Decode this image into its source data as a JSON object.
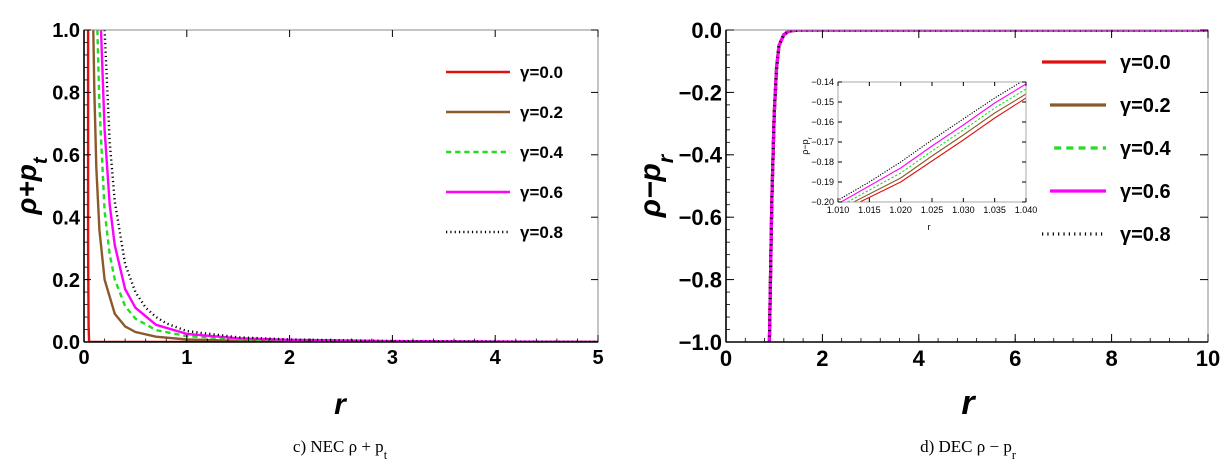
{
  "chart_data": [
    {
      "type": "line",
      "caption": "c) NEC ρ + p",
      "caption_sub": "t",
      "xlabel": "r",
      "ylabel": "ρ+p",
      "ylabel_sub": "t",
      "xlim": [
        0,
        5
      ],
      "ylim": [
        0,
        1.0
      ],
      "xticks": [
        "0",
        "1",
        "2",
        "3",
        "4",
        "5"
      ],
      "yticks": [
        "0.0",
        "0.2",
        "0.4",
        "0.6",
        "0.8",
        "1.0"
      ],
      "legend_position": "top-right",
      "series": [
        {
          "name": "γ=0.0",
          "color": "#e01010",
          "dash": "solid",
          "x": [
            0.04,
            0.04,
            0.045,
            0.05,
            5.0
          ],
          "y": [
            1.0,
            0.3,
            0.05,
            0.0,
            0.0
          ]
        },
        {
          "name": "γ=0.2",
          "color": "#8b5a2b",
          "dash": "solid",
          "x": [
            0.09,
            0.1,
            0.12,
            0.15,
            0.2,
            0.3,
            0.4,
            0.5,
            0.7,
            1.0,
            1.5,
            2.0,
            5.0
          ],
          "y": [
            1.0,
            0.81,
            0.56,
            0.36,
            0.2,
            0.09,
            0.05,
            0.032,
            0.017,
            0.008,
            0.004,
            0.002,
            0.0
          ]
        },
        {
          "name": "γ=0.4",
          "color": "#22dd22",
          "dash": "dashed",
          "x": [
            0.13,
            0.15,
            0.2,
            0.25,
            0.3,
            0.4,
            0.5,
            0.7,
            1.0,
            1.5,
            2.0,
            3.0,
            5.0
          ],
          "y": [
            1.0,
            0.76,
            0.42,
            0.28,
            0.2,
            0.115,
            0.075,
            0.038,
            0.019,
            0.009,
            0.005,
            0.002,
            0.0
          ]
        },
        {
          "name": "γ=0.6",
          "color": "#ff00ff",
          "dash": "solid",
          "x": [
            0.165,
            0.2,
            0.25,
            0.3,
            0.4,
            0.5,
            0.7,
            1.0,
            1.5,
            2.0,
            3.0,
            5.0
          ],
          "y": [
            1.0,
            0.68,
            0.44,
            0.31,
            0.17,
            0.11,
            0.055,
            0.026,
            0.012,
            0.007,
            0.003,
            0.0
          ]
        },
        {
          "name": "γ=0.8",
          "color": "#000000",
          "dash": "dotted",
          "x": [
            0.2,
            0.25,
            0.3,
            0.4,
            0.5,
            0.6,
            0.7,
            0.8,
            1.0,
            1.5,
            2.0,
            3.0,
            5.0
          ],
          "y": [
            1.0,
            0.64,
            0.45,
            0.25,
            0.16,
            0.11,
            0.08,
            0.06,
            0.035,
            0.015,
            0.008,
            0.003,
            0.0
          ]
        }
      ]
    },
    {
      "type": "line",
      "caption": "d) DEC ρ − p",
      "caption_sub": "r",
      "xlabel": "r",
      "ylabel": "ρ−p",
      "ylabel_sub": "r",
      "xlim": [
        0,
        10
      ],
      "ylim": [
        -1.0,
        0.0
      ],
      "xticks": [
        "0",
        "2",
        "4",
        "6",
        "8",
        "10"
      ],
      "yticks": [
        "-1.0",
        "-0.8",
        "-0.6",
        "-0.4",
        "-0.2",
        "0.0"
      ],
      "legend_position": "top-right",
      "series": [
        {
          "name": "γ=0.0",
          "color": "#e01010",
          "dash": "solid",
          "x": [
            0.9,
            0.95,
            1.0,
            1.05,
            1.1,
            1.2,
            1.3,
            1.5,
            2.0,
            10.0
          ],
          "y": [
            -1.0,
            -0.55,
            -0.27,
            -0.12,
            -0.05,
            -0.015,
            -0.004,
            0.0,
            0.0,
            0.0
          ]
        },
        {
          "name": "γ=0.2",
          "color": "#8b5a2b",
          "dash": "solid",
          "x": [
            0.9,
            0.95,
            1.0,
            1.05,
            1.1,
            1.2,
            1.3,
            1.5,
            2.0,
            10.0
          ],
          "y": [
            -1.0,
            -0.55,
            -0.27,
            -0.12,
            -0.05,
            -0.015,
            -0.004,
            0.0,
            0.0,
            0.0
          ]
        },
        {
          "name": "γ=0.4",
          "color": "#22dd22",
          "dash": "dashed",
          "x": [
            0.9,
            0.95,
            1.0,
            1.05,
            1.1,
            1.2,
            1.3,
            1.5,
            2.0,
            10.0
          ],
          "y": [
            -1.0,
            -0.55,
            -0.27,
            -0.12,
            -0.05,
            -0.015,
            -0.004,
            0.0,
            0.0,
            0.0
          ]
        },
        {
          "name": "γ=0.6",
          "color": "#ff00ff",
          "dash": "solid",
          "x": [
            0.9,
            0.95,
            1.0,
            1.05,
            1.1,
            1.2,
            1.3,
            1.5,
            2.0,
            10.0
          ],
          "y": [
            -1.0,
            -0.55,
            -0.27,
            -0.12,
            -0.05,
            -0.015,
            -0.004,
            0.0,
            0.0,
            0.0
          ]
        },
        {
          "name": "γ=0.8",
          "color": "#000000",
          "dash": "dotted",
          "x": [
            0.9,
            0.95,
            1.0,
            1.05,
            1.1,
            1.2,
            1.3,
            1.5,
            2.0,
            10.0
          ],
          "y": [
            -1.0,
            -0.55,
            -0.27,
            -0.12,
            -0.05,
            -0.015,
            -0.004,
            0.0,
            0.0,
            0.0
          ]
        }
      ],
      "inset": {
        "xlabel": "r",
        "ylabel": "ρ−p",
        "ylabel_sub": "r",
        "xlim": [
          1.01,
          1.04
        ],
        "ylim": [
          -0.2,
          -0.14
        ],
        "xticks": [
          "1.010",
          "1.015",
          "1.020",
          "1.025",
          "1.030",
          "1.035",
          "1.040"
        ],
        "yticks": [
          "-0.20",
          "-0.19",
          "-0.18",
          "-0.17",
          "-0.16",
          "-0.15",
          "-0.14"
        ],
        "series": [
          {
            "name": "γ=0.0",
            "color": "#e01010",
            "dash": "solid",
            "x": [
              1.0135,
              1.02,
              1.025,
              1.03,
              1.035,
              1.04
            ],
            "y": [
              -0.2,
              -0.19,
              -0.1795,
              -0.169,
              -0.158,
              -0.148
            ]
          },
          {
            "name": "γ=0.2",
            "color": "#8b5a2b",
            "dash": "solid",
            "x": [
              1.0125,
              1.02,
              1.025,
              1.03,
              1.035,
              1.04
            ],
            "y": [
              -0.2,
              -0.188,
              -0.177,
              -0.1665,
              -0.1555,
              -0.146
            ]
          },
          {
            "name": "γ=0.4",
            "color": "#22dd22",
            "dash": "dashed",
            "x": [
              1.0115,
              1.02,
              1.025,
              1.03,
              1.035,
              1.04
            ],
            "y": [
              -0.2,
              -0.1855,
              -0.1745,
              -0.164,
              -0.153,
              -0.1435
            ]
          },
          {
            "name": "γ=0.6",
            "color": "#ff00ff",
            "dash": "solid",
            "x": [
              1.0105,
              1.02,
              1.025,
              1.03,
              1.035,
              1.04
            ],
            "y": [
              -0.2,
              -0.183,
              -0.172,
              -0.1615,
              -0.1505,
              -0.141
            ]
          },
          {
            "name": "γ=0.8",
            "color": "#000000",
            "dash": "dotted",
            "x": [
              1.0095,
              1.015,
              1.02,
              1.025,
              1.03,
              1.035,
              1.04
            ],
            "y": [
              -0.2,
              -0.19,
              -0.18,
              -0.169,
              -0.1585,
              -0.148,
              -0.1385
            ]
          }
        ]
      }
    }
  ]
}
